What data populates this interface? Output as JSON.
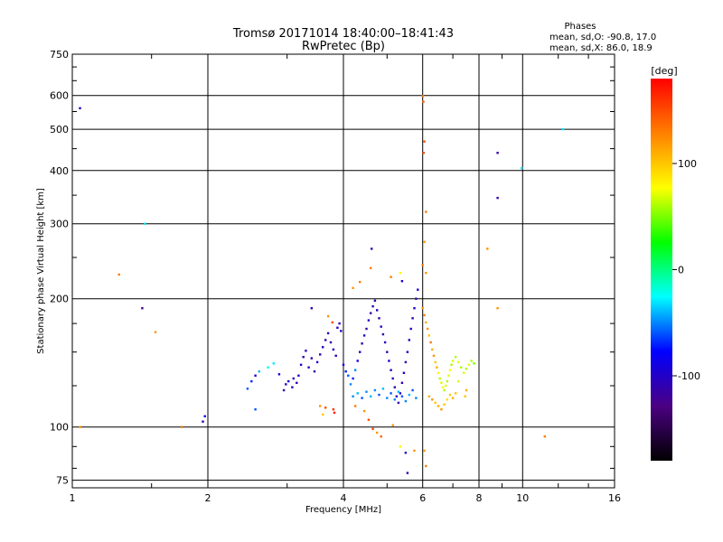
{
  "chart_data": {
    "type": "scatter",
    "title": "Tromsø 20171014 18:40:00–18:41:43",
    "subtitle": "RwPretec (Bp)",
    "xlabel": "Frequency [MHz]",
    "ylabel": "Stationary phase Virtual Height [km]",
    "xscale": "log",
    "yscale": "log",
    "xlim": [
      1,
      16
    ],
    "ylim": [
      72,
      750
    ],
    "x_ticks": [
      1,
      2,
      4,
      6,
      8,
      10,
      16
    ],
    "x_tick_labels": [
      "1",
      "2",
      "4",
      "6",
      "8",
      "10",
      "16"
    ],
    "y_ticks": [
      75,
      100,
      200,
      300,
      400,
      500,
      600,
      750
    ],
    "y_tick_labels": [
      "75",
      "100",
      "200",
      "300",
      "400",
      "500",
      "600",
      "750"
    ],
    "grid": true,
    "stats": {
      "header": "Phases",
      "line_o": "mean, sd,O: -90.8, 17.0",
      "line_x": "mean, sd,X: 86.0, 18.9"
    },
    "colorbar": {
      "label": "[deg]",
      "range": [
        -180,
        180
      ],
      "ticks": [
        100,
        0,
        -100
      ],
      "tick_labels": [
        "100",
        "0",
        "-100"
      ],
      "colors": [
        "#000000",
        "#4b0082",
        "#0000ff",
        "#00ffff",
        "#00ff00",
        "#ffff00",
        "#ff8000",
        "#ff0000"
      ]
    },
    "points": [
      [
        1.04,
        560,
        -100
      ],
      [
        1.04,
        100,
        120
      ],
      [
        1.45,
        300,
        -30
      ],
      [
        1.43,
        190,
        -120
      ],
      [
        1.27,
        228,
        130
      ],
      [
        1.53,
        167,
        120
      ],
      [
        1.75,
        100,
        130
      ],
      [
        1.95,
        103,
        -110
      ],
      [
        1.97,
        106,
        -80
      ],
      [
        2.45,
        123,
        -60
      ],
      [
        2.5,
        128,
        -70
      ],
      [
        2.55,
        132,
        -90
      ],
      [
        2.55,
        110,
        -60
      ],
      [
        2.6,
        135,
        -40
      ],
      [
        2.72,
        138,
        -20
      ],
      [
        2.8,
        141,
        -30
      ],
      [
        2.88,
        133,
        -100
      ],
      [
        2.95,
        122,
        -110
      ],
      [
        2.98,
        126,
        -100
      ],
      [
        3.02,
        128,
        -90
      ],
      [
        3.08,
        124,
        -110
      ],
      [
        3.1,
        130,
        -100
      ],
      [
        3.15,
        127,
        -110
      ],
      [
        3.18,
        132,
        -100
      ],
      [
        3.22,
        140,
        -100
      ],
      [
        3.26,
        146,
        -110
      ],
      [
        3.3,
        151,
        -100
      ],
      [
        3.35,
        138,
        -100
      ],
      [
        3.4,
        145,
        -110
      ],
      [
        3.45,
        135,
        -110
      ],
      [
        3.5,
        142,
        -100
      ],
      [
        3.55,
        148,
        -110
      ],
      [
        3.6,
        154,
        -100
      ],
      [
        3.65,
        160,
        -110
      ],
      [
        3.7,
        166,
        -100
      ],
      [
        3.75,
        158,
        -110
      ],
      [
        3.8,
        152,
        -100
      ],
      [
        3.85,
        147,
        -110
      ],
      [
        3.88,
        171,
        -100
      ],
      [
        3.92,
        175,
        -110
      ],
      [
        3.95,
        168,
        -100
      ],
      [
        3.4,
        190,
        -110
      ],
      [
        3.7,
        182,
        120
      ],
      [
        3.78,
        176,
        150
      ],
      [
        3.55,
        112,
        120
      ],
      [
        3.65,
        111,
        150
      ],
      [
        3.8,
        110,
        160
      ],
      [
        3.82,
        108,
        170
      ],
      [
        3.6,
        107,
        100
      ],
      [
        4.0,
        140,
        -90
      ],
      [
        4.05,
        135,
        -70
      ],
      [
        4.1,
        132,
        -60
      ],
      [
        4.15,
        126,
        -50
      ],
      [
        4.2,
        130,
        -70
      ],
      [
        4.25,
        136,
        -50
      ],
      [
        4.3,
        143,
        -90
      ],
      [
        4.35,
        150,
        -100
      ],
      [
        4.4,
        157,
        -110
      ],
      [
        4.45,
        164,
        -100
      ],
      [
        4.5,
        170,
        -110
      ],
      [
        4.55,
        178,
        -100
      ],
      [
        4.6,
        185,
        -110
      ],
      [
        4.65,
        192,
        -100
      ],
      [
        4.7,
        198,
        -110
      ],
      [
        4.75,
        188,
        -100
      ],
      [
        4.8,
        180,
        -110
      ],
      [
        4.85,
        172,
        -100
      ],
      [
        4.9,
        165,
        -110
      ],
      [
        4.95,
        158,
        -100
      ],
      [
        5.0,
        150,
        -110
      ],
      [
        5.05,
        143,
        -100
      ],
      [
        5.1,
        136,
        -110
      ],
      [
        5.15,
        130,
        -100
      ],
      [
        5.2,
        124,
        -110
      ],
      [
        5.25,
        118,
        -100
      ],
      [
        5.3,
        114,
        -110
      ],
      [
        5.35,
        120,
        -100
      ],
      [
        5.4,
        127,
        -110
      ],
      [
        5.45,
        134,
        -100
      ],
      [
        5.5,
        142,
        -110
      ],
      [
        5.55,
        150,
        -100
      ],
      [
        5.6,
        160,
        -110
      ],
      [
        5.65,
        170,
        -100
      ],
      [
        5.7,
        180,
        -110
      ],
      [
        5.75,
        190,
        -100
      ],
      [
        5.8,
        200,
        -110
      ],
      [
        5.85,
        210,
        -100
      ],
      [
        4.2,
        212,
        120
      ],
      [
        4.35,
        219,
        130
      ],
      [
        4.6,
        236,
        130
      ],
      [
        4.62,
        262,
        -110
      ],
      [
        5.1,
        225,
        130
      ],
      [
        5.4,
        220,
        -100
      ],
      [
        5.35,
        230,
        80
      ],
      [
        4.2,
        118,
        -50
      ],
      [
        4.3,
        120,
        -40
      ],
      [
        4.4,
        117,
        -60
      ],
      [
        4.5,
        121,
        -50
      ],
      [
        4.6,
        118,
        -40
      ],
      [
        4.7,
        122,
        -50
      ],
      [
        4.8,
        119,
        -60
      ],
      [
        4.9,
        123,
        -40
      ],
      [
        5.0,
        117,
        -50
      ],
      [
        5.1,
        120,
        -60
      ],
      [
        5.2,
        116,
        -50
      ],
      [
        5.3,
        121,
        -40
      ],
      [
        5.4,
        118,
        -60
      ],
      [
        5.5,
        115,
        -50
      ],
      [
        5.6,
        119,
        -40
      ],
      [
        5.7,
        122,
        -60
      ],
      [
        5.8,
        117,
        -50
      ],
      [
        4.25,
        112,
        130
      ],
      [
        4.45,
        109,
        120
      ],
      [
        4.55,
        104,
        150
      ],
      [
        4.65,
        99,
        150
      ],
      [
        4.75,
        97,
        120
      ],
      [
        4.85,
        95,
        140
      ],
      [
        5.15,
        101,
        120
      ],
      [
        5.35,
        90,
        80
      ],
      [
        5.5,
        87,
        -100
      ],
      [
        5.55,
        78,
        -110
      ],
      [
        5.75,
        88,
        120
      ],
      [
        6.0,
        190,
        120
      ],
      [
        6.05,
        183,
        130
      ],
      [
        6.1,
        176,
        110
      ],
      [
        6.15,
        170,
        120
      ],
      [
        6.2,
        164,
        100
      ],
      [
        6.25,
        158,
        130
      ],
      [
        6.3,
        152,
        110
      ],
      [
        6.35,
        147,
        120
      ],
      [
        6.4,
        142,
        100
      ],
      [
        6.45,
        138,
        110
      ],
      [
        6.5,
        134,
        80
      ],
      [
        6.55,
        130,
        60
      ],
      [
        6.6,
        127,
        70
      ],
      [
        6.65,
        124,
        80
      ],
      [
        6.7,
        122,
        60
      ],
      [
        6.75,
        125,
        70
      ],
      [
        6.8,
        128,
        60
      ],
      [
        6.85,
        132,
        70
      ],
      [
        6.9,
        136,
        80
      ],
      [
        6.95,
        140,
        60
      ],
      [
        7.0,
        143,
        70
      ],
      [
        7.1,
        146,
        60
      ],
      [
        7.2,
        142,
        70
      ],
      [
        7.3,
        138,
        60
      ],
      [
        7.4,
        134,
        70
      ],
      [
        7.5,
        137,
        60
      ],
      [
        7.6,
        140,
        70
      ],
      [
        7.7,
        143,
        60
      ],
      [
        7.8,
        141,
        50
      ],
      [
        7.2,
        128,
        70
      ],
      [
        6.2,
        118,
        110
      ],
      [
        6.3,
        116,
        120
      ],
      [
        6.4,
        114,
        100
      ],
      [
        6.5,
        112,
        110
      ],
      [
        6.6,
        110,
        120
      ],
      [
        6.7,
        113,
        100
      ],
      [
        6.8,
        116,
        90
      ],
      [
        6.9,
        119,
        100
      ],
      [
        7.0,
        117,
        110
      ],
      [
        7.1,
        120,
        100
      ],
      [
        6.0,
        598,
        130
      ],
      [
        6.02,
        580,
        140
      ],
      [
        6.05,
        468,
        150
      ],
      [
        6.03,
        440,
        150
      ],
      [
        6.1,
        320,
        130
      ],
      [
        6.05,
        272,
        120
      ],
      [
        6.0,
        240,
        130
      ],
      [
        6.1,
        230,
        120
      ],
      [
        6.05,
        88,
        120
      ],
      [
        6.1,
        81,
        130
      ],
      [
        8.35,
        262,
        120
      ],
      [
        8.8,
        440,
        -110
      ],
      [
        8.8,
        345,
        -110
      ],
      [
        8.8,
        190,
        120
      ],
      [
        9.95,
        405,
        -30
      ],
      [
        11.2,
        95,
        130
      ],
      [
        12.3,
        500,
        -30
      ],
      [
        7.45,
        118,
        100
      ],
      [
        7.5,
        122,
        110
      ]
    ]
  }
}
